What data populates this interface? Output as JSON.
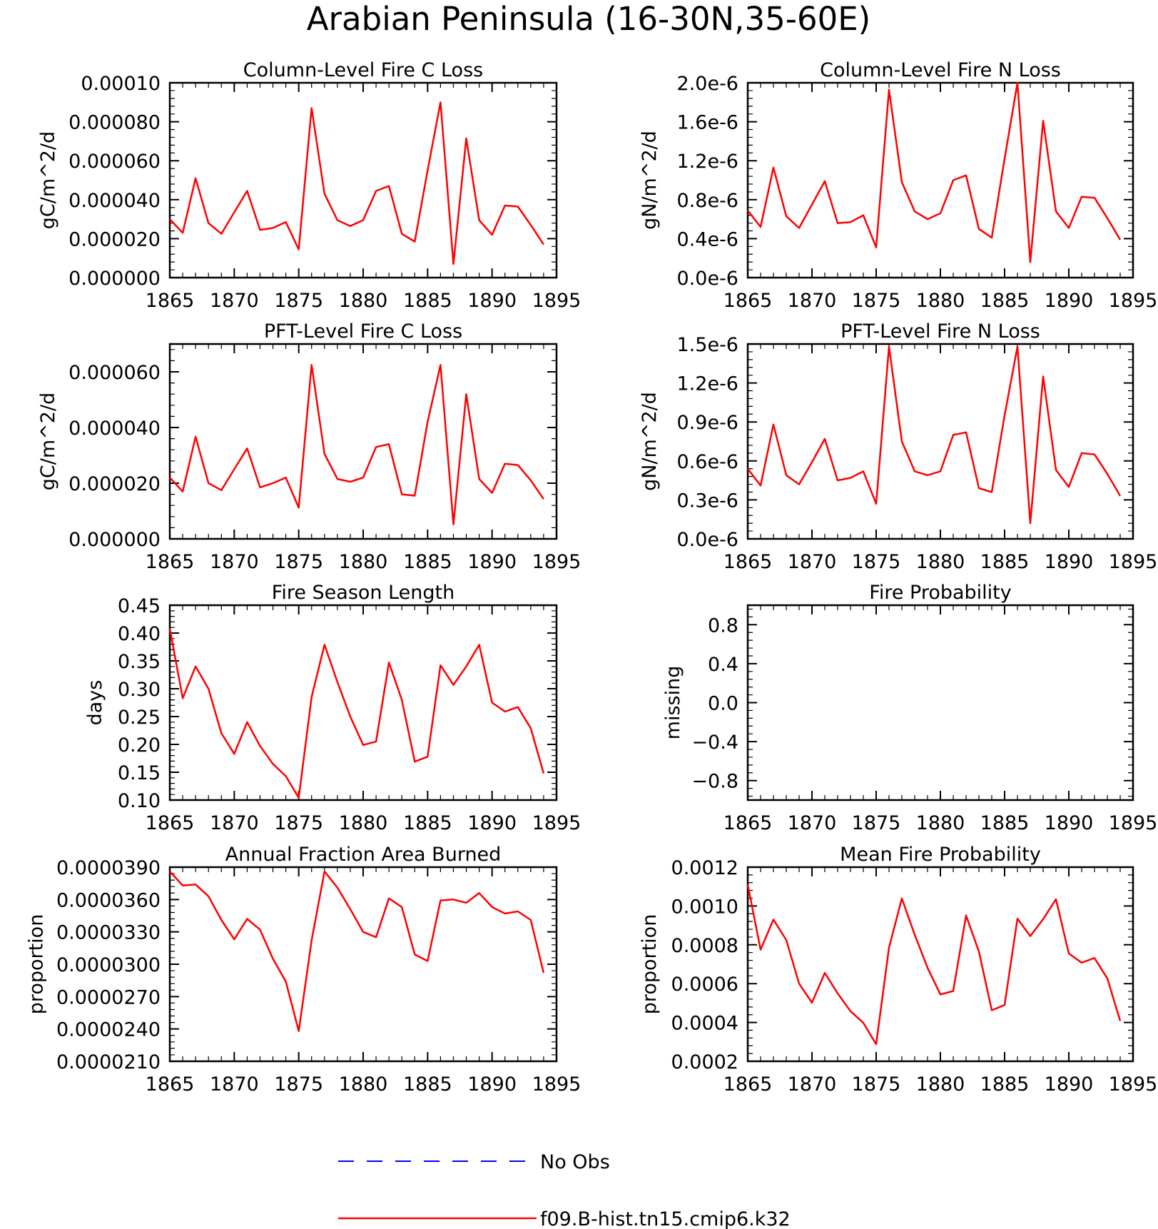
{
  "figure": {
    "title": "Arabian Peninsula (16-30N,35-60E)",
    "legend": [
      {
        "label": "No Obs",
        "color": "#0000ff",
        "style": "dashed"
      },
      {
        "label": "f09.B-hist.tn15.cmip6.k32",
        "color": "#ff0000",
        "style": "solid"
      }
    ]
  },
  "chart_data": [
    {
      "type": "line",
      "title": "Column-Level Fire C Loss",
      "ylabel": "gC/m^2/d",
      "xlim": [
        1865,
        1895
      ],
      "ylim": [
        0,
        0.0001
      ],
      "xticks": [
        "1865",
        "1870",
        "1875",
        "1880",
        "1885",
        "1890",
        "1895"
      ],
      "yticks": [
        {
          "v": 0,
          "label": "0.000000"
        },
        {
          "v": 2e-05,
          "label": "0.000020"
        },
        {
          "v": 4e-05,
          "label": "0.000040"
        },
        {
          "v": 6e-05,
          "label": "0.000060"
        },
        {
          "v": 8e-05,
          "label": "0.000080"
        },
        {
          "v": 0.0001,
          "label": "0.00010"
        }
      ],
      "x": [
        1865,
        1866,
        1867,
        1868,
        1869,
        1870,
        1871,
        1872,
        1873,
        1874,
        1875,
        1876,
        1877,
        1878,
        1879,
        1880,
        1881,
        1882,
        1883,
        1884,
        1885,
        1886,
        1887,
        1888,
        1889,
        1890,
        1891,
        1892,
        1893,
        1894
      ],
      "series": [
        {
          "color": "#ff0000",
          "values": [
            3e-05,
            2.3e-05,
            5.1e-05,
            2.8e-05,
            2.25e-05,
            3.35e-05,
            4.45e-05,
            2.45e-05,
            2.55e-05,
            2.85e-05,
            1.45e-05,
            8.7e-05,
            4.3e-05,
            2.95e-05,
            2.65e-05,
            2.95e-05,
            4.45e-05,
            4.7e-05,
            2.25e-05,
            1.85e-05,
            5.5e-05,
            9e-05,
            7e-06,
            7.15e-05,
            2.95e-05,
            2.2e-05,
            3.7e-05,
            3.65e-05,
            2.7e-05,
            1.7e-05
          ]
        }
      ]
    },
    {
      "type": "line",
      "title": "Column-Level Fire N Loss",
      "ylabel": "gN/m^2/d",
      "xlim": [
        1865,
        1895
      ],
      "ylim": [
        0,
        2e-06
      ],
      "xticks": [
        "1865",
        "1870",
        "1875",
        "1880",
        "1885",
        "1890",
        "1895"
      ],
      "yticks": [
        {
          "v": 0,
          "label": "0.0e-6"
        },
        {
          "v": 4e-07,
          "label": "0.4e-6"
        },
        {
          "v": 8e-07,
          "label": "0.8e-6"
        },
        {
          "v": 1.2e-06,
          "label": "1.2e-6"
        },
        {
          "v": 1.6e-06,
          "label": "1.6e-6"
        },
        {
          "v": 2e-06,
          "label": "2.0e-6"
        }
      ],
      "x": [
        1865,
        1866,
        1867,
        1868,
        1869,
        1870,
        1871,
        1872,
        1873,
        1874,
        1875,
        1876,
        1877,
        1878,
        1879,
        1880,
        1881,
        1882,
        1883,
        1884,
        1885,
        1886,
        1887,
        1888,
        1889,
        1890,
        1891,
        1892,
        1893,
        1894
      ],
      "series": [
        {
          "color": "#ff0000",
          "values": [
            6.9e-07,
            5.2e-07,
            1.13e-06,
            6.3e-07,
            5.1e-07,
            7.5e-07,
            9.9e-07,
            5.6e-07,
            5.7e-07,
            6.4e-07,
            3.1e-07,
            1.93e-06,
            9.8e-07,
            6.8e-07,
            6e-07,
            6.6e-07,
            1e-06,
            1.05e-06,
            5e-07,
            4.1e-07,
            1.22e-06,
            2e-06,
            1.6e-07,
            1.61e-06,
            6.8e-07,
            5.1e-07,
            8.3e-07,
            8.2e-07,
            6.1e-07,
            3.9e-07
          ]
        }
      ]
    },
    {
      "type": "line",
      "title": "PFT-Level Fire C Loss",
      "ylabel": "gC/m^2/d",
      "xlim": [
        1865,
        1895
      ],
      "ylim": [
        0,
        7e-05
      ],
      "xticks": [
        "1865",
        "1870",
        "1875",
        "1880",
        "1885",
        "1890",
        "1895"
      ],
      "yticks": [
        {
          "v": 0,
          "label": "0.000000"
        },
        {
          "v": 2e-05,
          "label": "0.000020"
        },
        {
          "v": 4e-05,
          "label": "0.000040"
        },
        {
          "v": 6e-05,
          "label": "0.000060"
        }
      ],
      "x": [
        1865,
        1866,
        1867,
        1868,
        1869,
        1870,
        1871,
        1872,
        1873,
        1874,
        1875,
        1876,
        1877,
        1878,
        1879,
        1880,
        1881,
        1882,
        1883,
        1884,
        1885,
        1886,
        1887,
        1888,
        1889,
        1890,
        1891,
        1892,
        1893,
        1894
      ],
      "series": [
        {
          "color": "#ff0000",
          "values": [
            2.2e-05,
            1.7e-05,
            3.67e-05,
            2e-05,
            1.75e-05,
            2.5e-05,
            3.25e-05,
            1.85e-05,
            2e-05,
            2.2e-05,
            1.12e-05,
            6.25e-05,
            3.05e-05,
            2.15e-05,
            2.05e-05,
            2.2e-05,
            3.3e-05,
            3.4e-05,
            1.6e-05,
            1.55e-05,
            4.2e-05,
            6.25e-05,
            5.2e-06,
            5.2e-05,
            2.15e-05,
            1.65e-05,
            2.7e-05,
            2.65e-05,
            2.1e-05,
            1.43e-05
          ]
        }
      ]
    },
    {
      "type": "line",
      "title": "PFT-Level Fire N Loss",
      "ylabel": "gN/m^2/d",
      "xlim": [
        1865,
        1895
      ],
      "ylim": [
        0,
        1.5e-06
      ],
      "xticks": [
        "1865",
        "1870",
        "1875",
        "1880",
        "1885",
        "1890",
        "1895"
      ],
      "yticks": [
        {
          "v": 0,
          "label": "0.0e-6"
        },
        {
          "v": 3e-07,
          "label": "0.3e-6"
        },
        {
          "v": 6e-07,
          "label": "0.6e-6"
        },
        {
          "v": 9e-07,
          "label": "0.9e-6"
        },
        {
          "v": 1.2e-06,
          "label": "1.2e-6"
        },
        {
          "v": 1.5e-06,
          "label": "1.5e-6"
        }
      ],
      "x": [
        1865,
        1866,
        1867,
        1868,
        1869,
        1870,
        1871,
        1872,
        1873,
        1874,
        1875,
        1876,
        1877,
        1878,
        1879,
        1880,
        1881,
        1882,
        1883,
        1884,
        1885,
        1886,
        1887,
        1888,
        1889,
        1890,
        1891,
        1892,
        1893,
        1894
      ],
      "series": [
        {
          "color": "#ff0000",
          "values": [
            5.4e-07,
            4.1e-07,
            8.8e-07,
            4.9e-07,
            4.2e-07,
            5.9e-07,
            7.7e-07,
            4.5e-07,
            4.7e-07,
            5.2e-07,
            2.7e-07,
            1.48e-06,
            7.5e-07,
            5.2e-07,
            4.9e-07,
            5.2e-07,
            8e-07,
            8.2e-07,
            3.9e-07,
            3.6e-07,
            9.5e-07,
            1.48e-06,
            1.2e-07,
            1.25e-06,
            5.3e-07,
            4e-07,
            6.6e-07,
            6.5e-07,
            5e-07,
            3.3e-07
          ]
        }
      ]
    },
    {
      "type": "line",
      "title": "Fire Season Length",
      "ylabel": "days",
      "xlim": [
        1865,
        1895
      ],
      "ylim": [
        0.1,
        0.45
      ],
      "xticks": [
        "1865",
        "1870",
        "1875",
        "1880",
        "1885",
        "1890",
        "1895"
      ],
      "yticks": [
        {
          "v": 0.1,
          "label": "0.10"
        },
        {
          "v": 0.15,
          "label": "0.15"
        },
        {
          "v": 0.2,
          "label": "0.20"
        },
        {
          "v": 0.25,
          "label": "0.25"
        },
        {
          "v": 0.3,
          "label": "0.30"
        },
        {
          "v": 0.35,
          "label": "0.35"
        },
        {
          "v": 0.4,
          "label": "0.40"
        },
        {
          "v": 0.45,
          "label": "0.45"
        }
      ],
      "x": [
        1865,
        1866,
        1867,
        1868,
        1869,
        1870,
        1871,
        1872,
        1873,
        1874,
        1875,
        1876,
        1877,
        1878,
        1879,
        1880,
        1881,
        1882,
        1883,
        1884,
        1885,
        1886,
        1887,
        1888,
        1889,
        1890,
        1891,
        1892,
        1893,
        1894
      ],
      "series": [
        {
          "color": "#ff0000",
          "values": [
            0.408,
            0.283,
            0.34,
            0.3,
            0.22,
            0.183,
            0.24,
            0.197,
            0.165,
            0.143,
            0.104,
            0.285,
            0.379,
            0.312,
            0.25,
            0.199,
            0.205,
            0.347,
            0.28,
            0.169,
            0.178,
            0.342,
            0.307,
            0.34,
            0.379,
            0.275,
            0.259,
            0.267,
            0.229,
            0.148
          ]
        }
      ]
    },
    {
      "type": "line",
      "title": "Fire Probability",
      "ylabel": "missing",
      "xlim": [
        1865,
        1895
      ],
      "ylim": [
        -1,
        1
      ],
      "xticks": [
        "1865",
        "1870",
        "1875",
        "1880",
        "1885",
        "1890",
        "1895"
      ],
      "yticks": [
        {
          "v": -0.8,
          "label": "−0.8"
        },
        {
          "v": -0.4,
          "label": "−0.4"
        },
        {
          "v": 0,
          "label": "0.0"
        },
        {
          "v": 0.4,
          "label": "0.4"
        },
        {
          "v": 0.8,
          "label": "0.8"
        }
      ],
      "x": [],
      "series": []
    },
    {
      "type": "line",
      "title": "Annual Fraction Area Burned",
      "ylabel": "proportion",
      "xlim": [
        1865,
        1895
      ],
      "ylim": [
        2.1e-05,
        3.9e-05
      ],
      "xticks": [
        "1865",
        "1870",
        "1875",
        "1880",
        "1885",
        "1890",
        "1895"
      ],
      "yticks": [
        {
          "v": 2.1e-05,
          "label": "0.0000210"
        },
        {
          "v": 2.4e-05,
          "label": "0.0000240"
        },
        {
          "v": 2.7e-05,
          "label": "0.0000270"
        },
        {
          "v": 3e-05,
          "label": "0.0000300"
        },
        {
          "v": 3.3e-05,
          "label": "0.0000330"
        },
        {
          "v": 3.6e-05,
          "label": "0.0000360"
        },
        {
          "v": 3.9e-05,
          "label": "0.0000390"
        }
      ],
      "x": [
        1865,
        1866,
        1867,
        1868,
        1869,
        1870,
        1871,
        1872,
        1873,
        1874,
        1875,
        1876,
        1877,
        1878,
        1879,
        1880,
        1881,
        1882,
        1883,
        1884,
        1885,
        1886,
        1887,
        1888,
        1889,
        1890,
        1891,
        1892,
        1893,
        1894
      ],
      "series": [
        {
          "color": "#ff0000",
          "values": [
            3.86e-05,
            3.73e-05,
            3.74e-05,
            3.63e-05,
            3.41e-05,
            3.23e-05,
            3.42e-05,
            3.32e-05,
            3.05e-05,
            2.84e-05,
            2.38e-05,
            3.22e-05,
            3.86e-05,
            3.71e-05,
            3.51e-05,
            3.3e-05,
            3.25e-05,
            3.61e-05,
            3.53e-05,
            3.09e-05,
            3.03e-05,
            3.59e-05,
            3.6e-05,
            3.57e-05,
            3.66e-05,
            3.53e-05,
            3.47e-05,
            3.49e-05,
            3.41e-05,
            2.92e-05
          ]
        }
      ]
    },
    {
      "type": "line",
      "title": "Mean Fire Probability",
      "ylabel": "proportion",
      "xlim": [
        1865,
        1895
      ],
      "ylim": [
        0.0002,
        0.0012
      ],
      "xticks": [
        "1865",
        "1870",
        "1875",
        "1880",
        "1885",
        "1890",
        "1895"
      ],
      "yticks": [
        {
          "v": 0.0002,
          "label": "0.0002"
        },
        {
          "v": 0.0004,
          "label": "0.0004"
        },
        {
          "v": 0.0006,
          "label": "0.0006"
        },
        {
          "v": 0.0008,
          "label": "0.0008"
        },
        {
          "v": 0.001,
          "label": "0.0010"
        },
        {
          "v": 0.0012,
          "label": "0.0012"
        }
      ],
      "x": [
        1865,
        1866,
        1867,
        1868,
        1869,
        1870,
        1871,
        1872,
        1873,
        1874,
        1875,
        1876,
        1877,
        1878,
        1879,
        1880,
        1881,
        1882,
        1883,
        1884,
        1885,
        1886,
        1887,
        1888,
        1889,
        1890,
        1891,
        1892,
        1893,
        1894
      ],
      "series": [
        {
          "color": "#ff0000",
          "values": [
            0.00111,
            0.000775,
            0.00093,
            0.000825,
            0.0006,
            0.000502,
            0.000655,
            0.00055,
            0.000458,
            0.000398,
            0.000288,
            0.000785,
            0.001039,
            0.000852,
            0.000682,
            0.000544,
            0.000562,
            0.000951,
            0.000765,
            0.000463,
            0.00049,
            0.000935,
            0.000845,
            0.000932,
            0.001035,
            0.000755,
            0.000708,
            0.000732,
            0.000627,
            0.000408
          ]
        }
      ]
    }
  ]
}
